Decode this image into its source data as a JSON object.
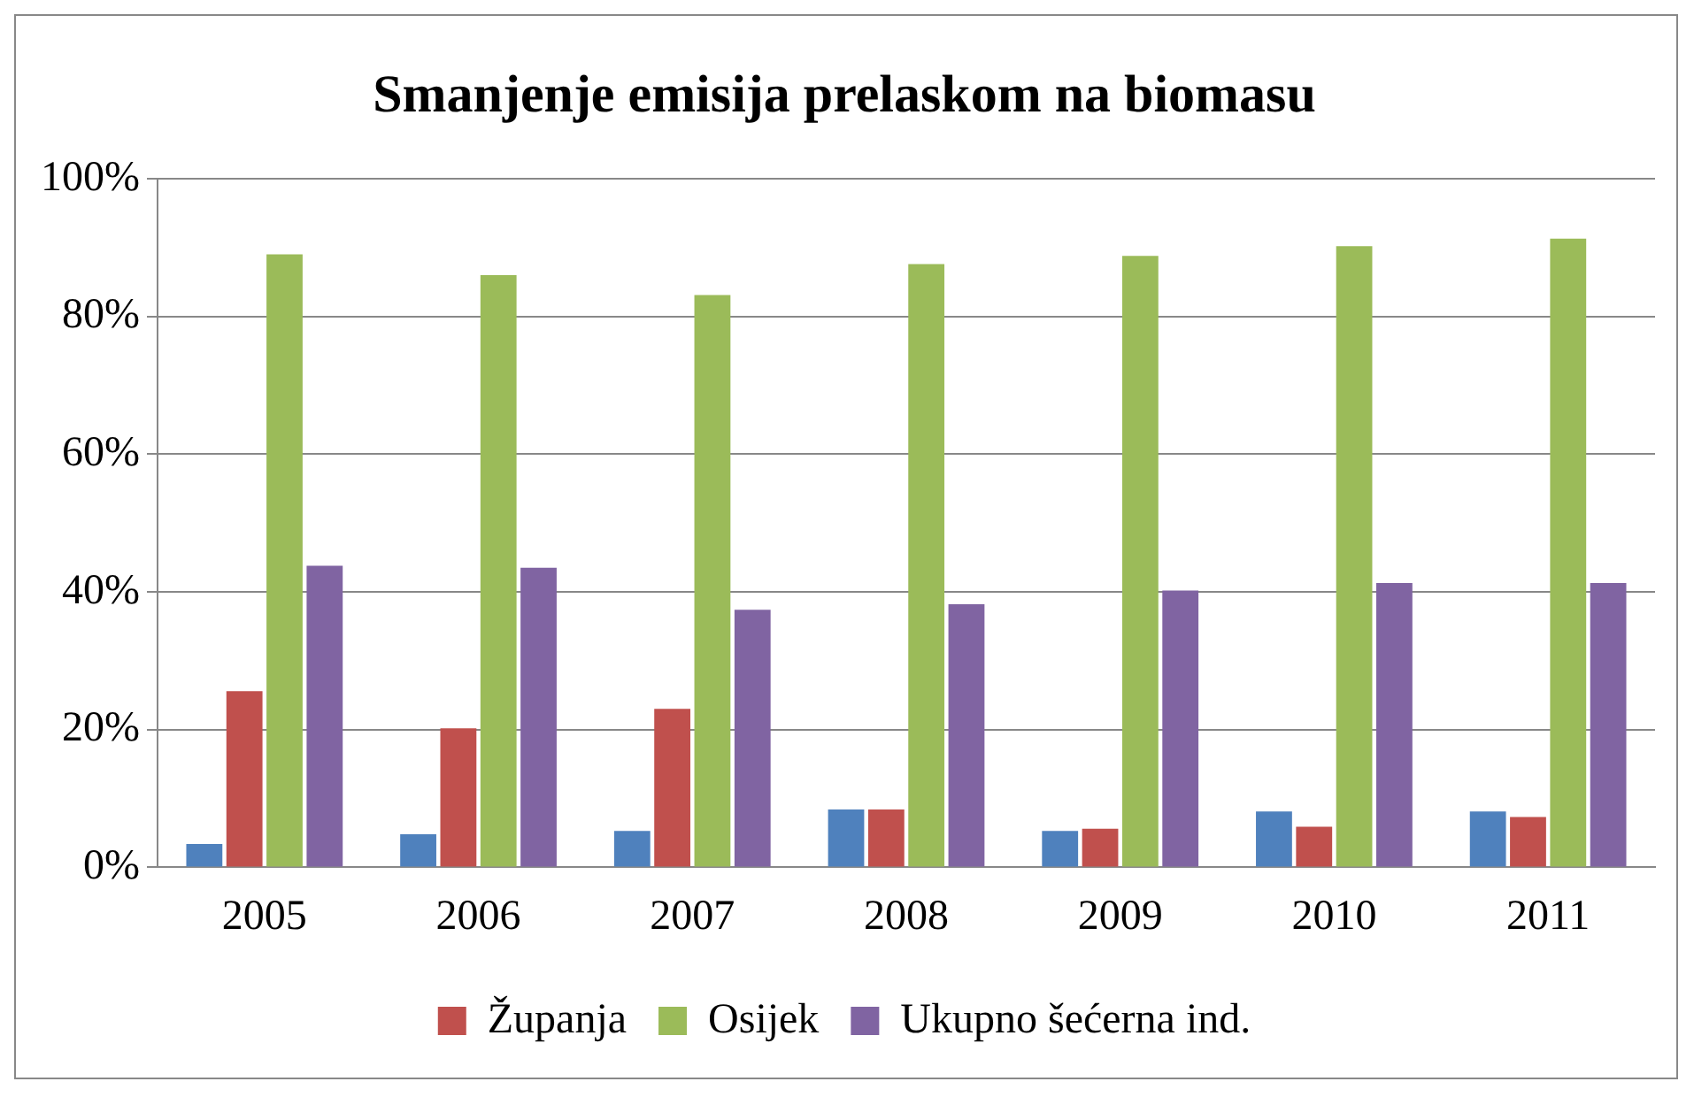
{
  "chart_data": {
    "type": "bar",
    "title": "Smanjenje emisija prelaskom na biomasu",
    "categories": [
      "2005",
      "2006",
      "2007",
      "2008",
      "2009",
      "2010",
      "2011"
    ],
    "series": [
      {
        "color": "#4f81bd",
        "values": [
          3.4,
          4.8,
          5.3,
          8.4,
          5.3,
          8.1,
          8.1
        ]
      },
      {
        "name": "Županja",
        "color": "#c0504d",
        "values": [
          25.6,
          20.2,
          23.0,
          8.4,
          5.6,
          5.9,
          7.3
        ]
      },
      {
        "name": "Osijek",
        "color": "#9bbb59",
        "values": [
          89.0,
          86.0,
          83.1,
          87.6,
          88.8,
          90.2,
          91.3
        ]
      },
      {
        "name": "Ukupno šećerna ind.",
        "color": "#8064a2",
        "values": [
          43.8,
          43.5,
          37.4,
          38.2,
          40.2,
          41.3,
          41.3
        ]
      }
    ],
    "ylim": [
      0,
      100
    ],
    "yticks": [
      {
        "value": 0,
        "label": "0%"
      },
      {
        "value": 20,
        "label": "20%"
      },
      {
        "value": 40,
        "label": "40%"
      },
      {
        "value": 60,
        "label": "60%"
      },
      {
        "value": 80,
        "label": "80%"
      },
      {
        "value": 100,
        "label": "100%"
      }
    ],
    "grid": "y",
    "legend": "bottom"
  }
}
